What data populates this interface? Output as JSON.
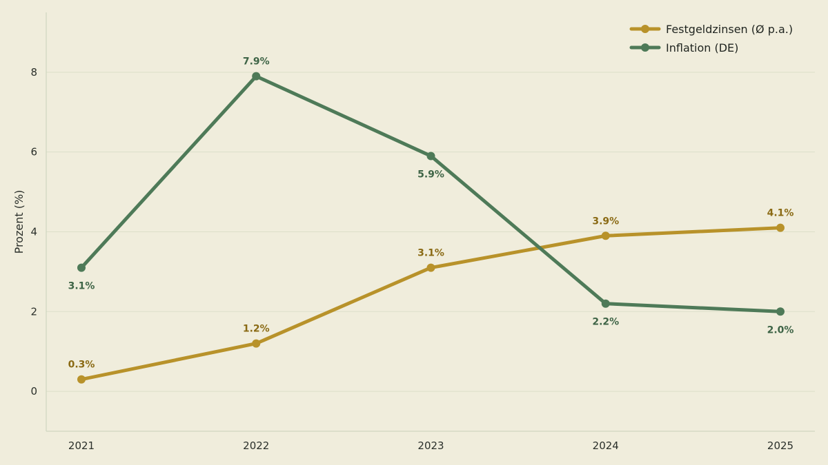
{
  "chart_data": {
    "type": "line",
    "title": "",
    "xlabel": "",
    "ylabel": "Prozent (%)",
    "x": [
      "2021",
      "2022",
      "2023",
      "2024",
      "2025"
    ],
    "ylim": [
      -1,
      9.5
    ],
    "yticks": [
      0,
      2,
      4,
      6,
      8
    ],
    "grid": true,
    "legend_position": "top-right",
    "series": [
      {
        "name": "Festgeldzinsen (Ø p.a.)",
        "values": [
          0.3,
          1.2,
          3.1,
          3.9,
          4.1
        ],
        "labels": [
          "0.3%",
          "1.2%",
          "3.1%",
          "3.9%",
          "4.1%"
        ],
        "color": "#b8922a",
        "label_color": "#8a6a14",
        "label_position": [
          "above",
          "above",
          "above",
          "above",
          "above"
        ]
      },
      {
        "name": "Inflation (DE)",
        "values": [
          3.1,
          7.9,
          5.9,
          2.2,
          2.0
        ],
        "labels": [
          "3.1%",
          "7.9%",
          "5.9%",
          "2.2%",
          "2.0%"
        ],
        "color": "#4e7a58",
        "label_color": "#3e6446",
        "label_position": [
          "below",
          "above",
          "below",
          "below",
          "below"
        ]
      }
    ]
  },
  "colors": {
    "background": "#f0eddc",
    "grid": "#dcdfc9",
    "axis": "#cfd6c0"
  }
}
